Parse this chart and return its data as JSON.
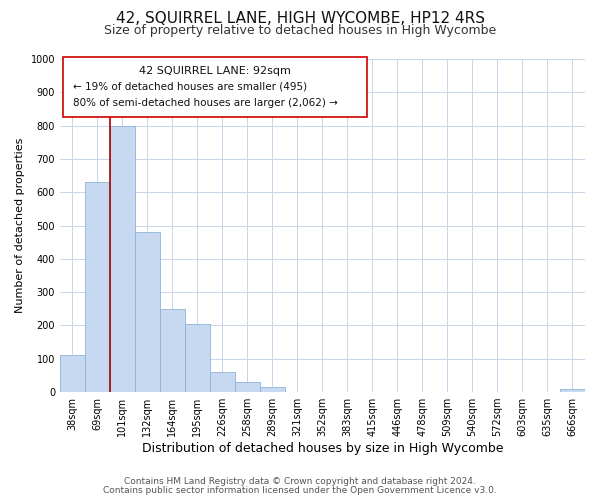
{
  "title": "42, SQUIRREL LANE, HIGH WYCOMBE, HP12 4RS",
  "subtitle": "Size of property relative to detached houses in High Wycombe",
  "xlabel": "Distribution of detached houses by size in High Wycombe",
  "ylabel": "Number of detached properties",
  "bar_labels": [
    "38sqm",
    "69sqm",
    "101sqm",
    "132sqm",
    "164sqm",
    "195sqm",
    "226sqm",
    "258sqm",
    "289sqm",
    "321sqm",
    "352sqm",
    "383sqm",
    "415sqm",
    "446sqm",
    "478sqm",
    "509sqm",
    "540sqm",
    "572sqm",
    "603sqm",
    "635sqm",
    "666sqm"
  ],
  "bar_values": [
    110,
    630,
    800,
    480,
    250,
    205,
    60,
    30,
    15,
    0,
    0,
    0,
    0,
    0,
    0,
    0,
    0,
    0,
    0,
    0,
    10
  ],
  "bar_color": "#c6d9f0",
  "bar_edge_color": "#8db3d9",
  "ylim": [
    0,
    1000
  ],
  "yticks": [
    0,
    100,
    200,
    300,
    400,
    500,
    600,
    700,
    800,
    900,
    1000
  ],
  "vline_x": 1.5,
  "vline_color": "#aa0000",
  "annotation_line1": "42 SQUIRREL LANE: 92sqm",
  "annotation_line2": "← 19% of detached houses are smaller (495)",
  "annotation_line3": "80% of semi-detached houses are larger (2,062) →",
  "footer1": "Contains HM Land Registry data © Crown copyright and database right 2024.",
  "footer2": "Contains public sector information licensed under the Open Government Licence v3.0.",
  "background_color": "#ffffff",
  "grid_color": "#c8d4e8",
  "title_fontsize": 11,
  "subtitle_fontsize": 9,
  "xlabel_fontsize": 9,
  "ylabel_fontsize": 8,
  "tick_fontsize": 7,
  "footer_fontsize": 6.5,
  "annot_fontsize1": 8,
  "annot_fontsize2": 7.5
}
